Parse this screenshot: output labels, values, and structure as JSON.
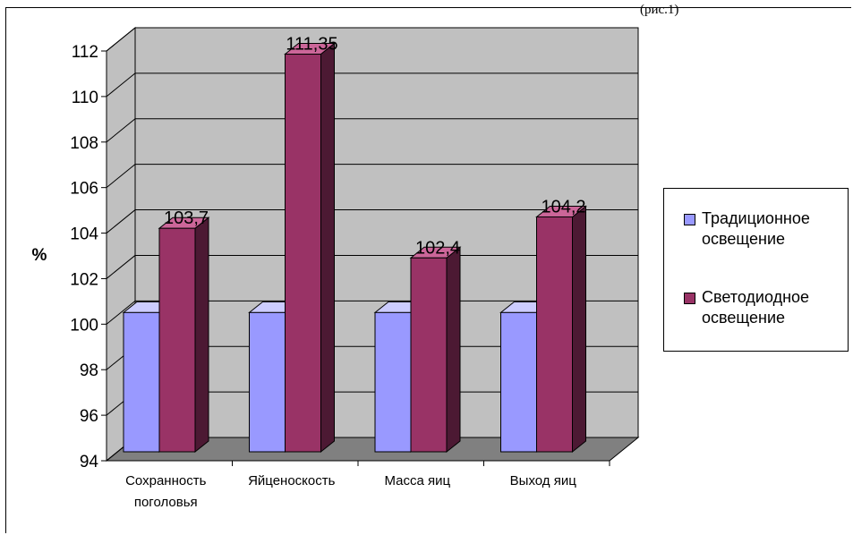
{
  "header_note": "(рис.1)",
  "chart_data": {
    "type": "bar",
    "categories": [
      "Сохранность поголовья",
      "Яйценоскость",
      "Масса яиц",
      "Выход яиц"
    ],
    "category_lines": [
      [
        "Сохранность",
        "поголовья"
      ],
      [
        "Яйценоскость"
      ],
      [
        "Масса яиц"
      ],
      [
        "Выход яиц"
      ]
    ],
    "series": [
      {
        "name": "Традиционное освещение",
        "values": [
          100,
          100,
          100,
          100
        ],
        "color": "#9999ff"
      },
      {
        "name": "Светодиодное освещение",
        "values": [
          103.7,
          111.35,
          102.4,
          104.2
        ],
        "color": "#993366"
      }
    ],
    "data_labels": [
      "103,7",
      "111,35",
      "102,4",
      "104,2"
    ],
    "ylabel": "%",
    "ylim": [
      94,
      112
    ],
    "yticks": [
      "94",
      "96",
      "98",
      "100",
      "102",
      "104",
      "106",
      "108",
      "110",
      "112"
    ],
    "grid": true,
    "legend_position": "right",
    "wall_color": "#c0c0c0",
    "floor_color": "#808080"
  },
  "legend": {
    "items": [
      {
        "lines": [
          "Традиционное",
          "освещение"
        ]
      },
      {
        "lines": [
          "Светодиодное",
          "освещение"
        ]
      }
    ]
  }
}
